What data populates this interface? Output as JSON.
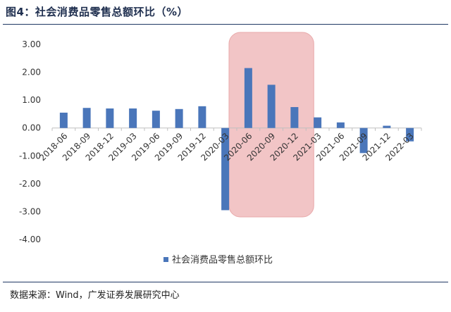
{
  "figure": {
    "title": "图4：社会消费品零售总额环比（%）",
    "source": "数据来源：Wind，广发证券发展研究中心"
  },
  "colors": {
    "bar": "#4a76ba",
    "highlight_fill": "#f2c5c6",
    "highlight_stroke": "#e8a9aa",
    "axis": "#bfbfbf",
    "text": "#333333",
    "rule": "#1f3864"
  },
  "chart_data": {
    "type": "bar",
    "categories": [
      "2018-06",
      "2018-09",
      "2018-12",
      "2019-03",
      "2019-06",
      "2019-09",
      "2019-12",
      "2020-03",
      "2020-06",
      "2020-09",
      "2020-12",
      "2021-03",
      "2021-06",
      "2021-09",
      "2021-12",
      "2022-03"
    ],
    "series": [
      {
        "name": "社会消费品零售总额环比",
        "values": [
          0.55,
          0.72,
          0.7,
          0.7,
          0.62,
          0.68,
          0.78,
          -2.95,
          2.15,
          1.55,
          0.75,
          0.38,
          0.2,
          -0.9,
          0.08,
          -0.48
        ]
      }
    ],
    "ylim": [
      -4.0,
      3.0
    ],
    "yticks": [
      "3.00",
      "2.00",
      "1.00",
      "0.00",
      "-1.00",
      "-2.00",
      "-3.00",
      "-4.00"
    ],
    "xlabel": "",
    "ylabel": "",
    "grid": false,
    "legend": "bottom-center",
    "highlight_categories": [
      "2020-06",
      "2020-09",
      "2020-12"
    ]
  }
}
